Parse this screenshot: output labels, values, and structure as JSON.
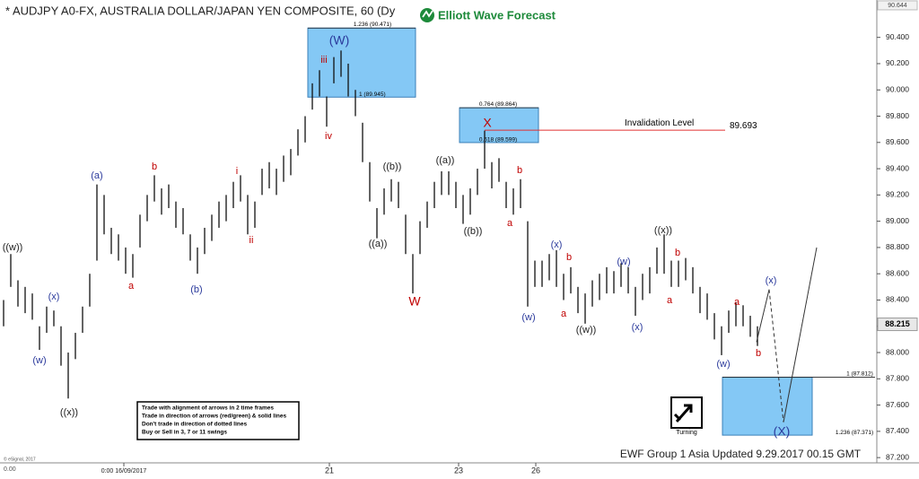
{
  "chart_data": {
    "type": "ohlc",
    "title": "* AUDJPY A0-FX, AUSTRALIA DOLLAR/JAPAN YEN COMPOSITE, 60 (Dy",
    "logo": "Elliott Wave Forecast",
    "footer": "EWF Group 1 Asia Updated 9.29.2017 00.15 GMT",
    "copyright": "© eSignal, 2017",
    "corner": "0.00",
    "turning": "Turning",
    "rules": [
      "Trade with alignment of arrows in 2 time frames",
      "Trade in direction of arrows (red/green) & solid lines",
      "Don't trade in direction of dotted lines",
      "Buy or Sell in 3, 7 or 11 swings"
    ],
    "color": "#111111",
    "x": [
      1,
      3,
      5,
      7,
      9,
      11,
      13,
      15,
      17,
      19,
      21,
      23,
      25,
      27,
      29,
      31,
      33,
      35,
      37,
      39,
      41,
      43,
      45,
      47,
      49,
      51,
      53,
      55,
      57,
      59,
      61,
      63,
      65,
      67,
      69,
      71,
      73,
      75,
      77,
      79,
      81,
      83,
      85,
      87,
      89,
      91,
      93,
      95,
      97,
      99,
      101,
      103,
      105,
      107,
      109,
      111,
      113,
      115,
      117,
      119,
      121,
      123,
      125,
      127,
      129,
      131,
      133,
      135,
      137,
      139,
      141,
      143,
      145,
      147,
      149,
      151,
      153,
      155,
      157,
      159,
      161,
      163,
      165,
      167,
      169,
      171,
      173,
      175,
      177,
      179,
      181,
      183,
      185,
      187,
      189,
      191,
      193,
      195,
      197,
      199,
      201,
      203,
      205,
      207,
      209,
      211
    ],
    "high": [
      88.4,
      88.75,
      88.55,
      88.5,
      88.45,
      88.2,
      88.35,
      88.32,
      88.2,
      88.0,
      88.15,
      88.35,
      88.6,
      89.28,
      89.2,
      88.95,
      88.9,
      88.8,
      88.75,
      89.05,
      89.2,
      89.35,
      89.25,
      89.28,
      89.15,
      89.1,
      88.9,
      88.8,
      88.95,
      89.05,
      89.15,
      89.2,
      89.3,
      89.35,
      89.2,
      89.15,
      89.4,
      89.45,
      89.4,
      89.5,
      89.55,
      89.7,
      89.8,
      90.05,
      90.15,
      89.95,
      90.25,
      90.3,
      90.2,
      90.0,
      89.75,
      89.45,
      89.1,
      89.25,
      89.32,
      89.3,
      89.05,
      88.75,
      89.0,
      89.15,
      89.3,
      89.38,
      89.38,
      89.3,
      89.2,
      89.25,
      89.4,
      89.69,
      89.45,
      89.48,
      89.3,
      89.25,
      89.32,
      89.0,
      88.7,
      88.7,
      88.75,
      88.78,
      88.6,
      88.65,
      88.5,
      88.45,
      88.55,
      88.6,
      88.65,
      88.62,
      88.68,
      88.65,
      88.5,
      88.6,
      88.65,
      88.8,
      88.9,
      88.7,
      88.7,
      88.72,
      88.65,
      88.5,
      88.45,
      88.3,
      88.2,
      88.32,
      88.38,
      88.36,
      88.28,
      88.2
    ],
    "low": [
      88.2,
      88.5,
      88.35,
      88.3,
      88.25,
      88.02,
      88.15,
      88.2,
      87.9,
      87.65,
      87.95,
      88.15,
      88.35,
      88.7,
      88.9,
      88.75,
      88.7,
      88.6,
      88.57,
      88.8,
      89.0,
      89.15,
      89.05,
      89.1,
      88.95,
      88.9,
      88.7,
      88.6,
      88.75,
      88.85,
      88.95,
      89.0,
      89.1,
      89.15,
      88.9,
      88.95,
      89.2,
      89.25,
      89.2,
      89.3,
      89.35,
      89.5,
      89.6,
      89.85,
      89.95,
      89.72,
      90.05,
      90.1,
      89.95,
      89.8,
      89.45,
      89.15,
      88.87,
      89.05,
      89.15,
      89.1,
      88.75,
      88.45,
      88.75,
      88.95,
      89.1,
      89.2,
      89.2,
      89.1,
      88.98,
      89.05,
      89.2,
      89.4,
      89.25,
      89.3,
      89.1,
      89.05,
      89.1,
      88.35,
      88.5,
      88.5,
      88.55,
      88.5,
      88.4,
      88.45,
      88.3,
      88.22,
      88.35,
      88.4,
      88.45,
      88.45,
      88.5,
      88.45,
      88.28,
      88.4,
      88.45,
      88.6,
      88.6,
      88.5,
      88.5,
      88.55,
      88.45,
      88.3,
      88.25,
      88.1,
      87.98,
      88.15,
      88.2,
      88.2,
      88.12,
      88.05
    ],
    "xlim": [
      0,
      243.75
    ],
    "ylim": [
      87.16,
      90.63
    ],
    "xticks": [
      {
        "value": 34.5,
        "label": "0:00 16/09/2017"
      },
      {
        "value": 91.75,
        "label": "21"
      },
      {
        "value": 127.75,
        "label": "23"
      },
      {
        "value": 149.25,
        "label": "26"
      }
    ],
    "yticks": [
      {
        "value": 87.2,
        "label": "87.200"
      },
      {
        "value": 87.4,
        "label": "87.400"
      },
      {
        "value": 87.6,
        "label": "87.600"
      },
      {
        "value": 87.8,
        "label": "87.800"
      },
      {
        "value": 88.0,
        "label": "88.000"
      },
      {
        "value": 88.2,
        "label": "88.200"
      },
      {
        "value": 88.4,
        "label": "88.400"
      },
      {
        "value": 88.6,
        "label": "88.600"
      },
      {
        "value": 88.8,
        "label": "88.800"
      },
      {
        "value": 89.0,
        "label": "89.000"
      },
      {
        "value": 89.2,
        "label": "89.200"
      },
      {
        "value": 89.4,
        "label": "89.400"
      },
      {
        "value": 89.6,
        "label": "89.600"
      },
      {
        "value": 89.8,
        "label": "89.800"
      },
      {
        "value": 90.0,
        "label": "90.000"
      },
      {
        "value": 90.2,
        "label": "90.200"
      },
      {
        "value": 90.4,
        "label": "90.400"
      }
    ],
    "last_price": 88.215,
    "top_price": 90.644,
    "zones": [
      {
        "top": 90.471,
        "bottom": 89.945,
        "top_label": "1.236 (90.471)",
        "bottom_label": "1 (89.945)",
        "color": "#84c8f5"
      },
      {
        "top": 89.864,
        "bottom": 89.599,
        "top_label": "0.764 (89.864)",
        "bottom_label": "0.618 (89.599)",
        "color": "#84c8f5"
      },
      {
        "top": 87.812,
        "bottom": 87.371,
        "top_label": "1 (87.812)",
        "bottom_label": "1.236 (87.371)",
        "color": "#84c8f5"
      }
    ],
    "invalidation": {
      "label": "Invalidation Level",
      "value": 89.693,
      "color": "#e03030"
    },
    "projection": {
      "x": [
        210.75,
        214.25,
        218.25,
        227.5
      ],
      "y": [
        88.08,
        88.48,
        87.47,
        88.8
      ],
      "color": "#333333"
    },
    "annotations": [
      {
        "text": "((w))",
        "color": "#222222"
      },
      {
        "text": "(w)",
        "color": "#2b3a9c"
      },
      {
        "text": "(x)",
        "color": "#2b3a9c"
      },
      {
        "text": "((x))",
        "color": "#222222"
      },
      {
        "text": "(a)",
        "color": "#2b3a9c"
      },
      {
        "text": "a",
        "color": "#c00000"
      },
      {
        "text": "b",
        "color": "#c00000"
      },
      {
        "text": "(b)",
        "color": "#2b3a9c"
      },
      {
        "text": "i",
        "color": "#c00000"
      },
      {
        "text": "ii",
        "color": "#c00000"
      },
      {
        "text": "iii",
        "color": "#c00000"
      },
      {
        "text": "iv",
        "color": "#c00000"
      },
      {
        "text": "(W)",
        "color": "#2b3a9c"
      },
      {
        "text": "((b))",
        "color": "#222222"
      },
      {
        "text": "((a))",
        "color": "#222222"
      },
      {
        "text": "W",
        "color": "#c00000"
      },
      {
        "text": "((a))",
        "color": "#222222"
      },
      {
        "text": "((b))",
        "color": "#222222"
      },
      {
        "text": "X",
        "color": "#c00000"
      },
      {
        "text": "b",
        "color": "#c00000"
      },
      {
        "text": "a",
        "color": "#c00000"
      },
      {
        "text": "(x)",
        "color": "#2b3a9c"
      },
      {
        "text": "b",
        "color": "#c00000"
      },
      {
        "text": "a",
        "color": "#c00000"
      },
      {
        "text": "(w)",
        "color": "#2b3a9c"
      },
      {
        "text": "((w))",
        "color": "#222222"
      },
      {
        "text": "(w)",
        "color": "#2b3a9c"
      },
      {
        "text": "(x)",
        "color": "#2b3a9c"
      },
      {
        "text": "((x))",
        "color": "#222222"
      },
      {
        "text": "b",
        "color": "#c00000"
      },
      {
        "text": "a",
        "color": "#c00000"
      },
      {
        "text": "a",
        "color": "#c00000"
      },
      {
        "text": "(w)",
        "color": "#2b3a9c"
      },
      {
        "text": "b",
        "color": "#c00000"
      },
      {
        "text": "(x)",
        "color": "#2b3a9c"
      },
      {
        "text": "(X)",
        "color": "#2b3a9c"
      }
    ]
  }
}
